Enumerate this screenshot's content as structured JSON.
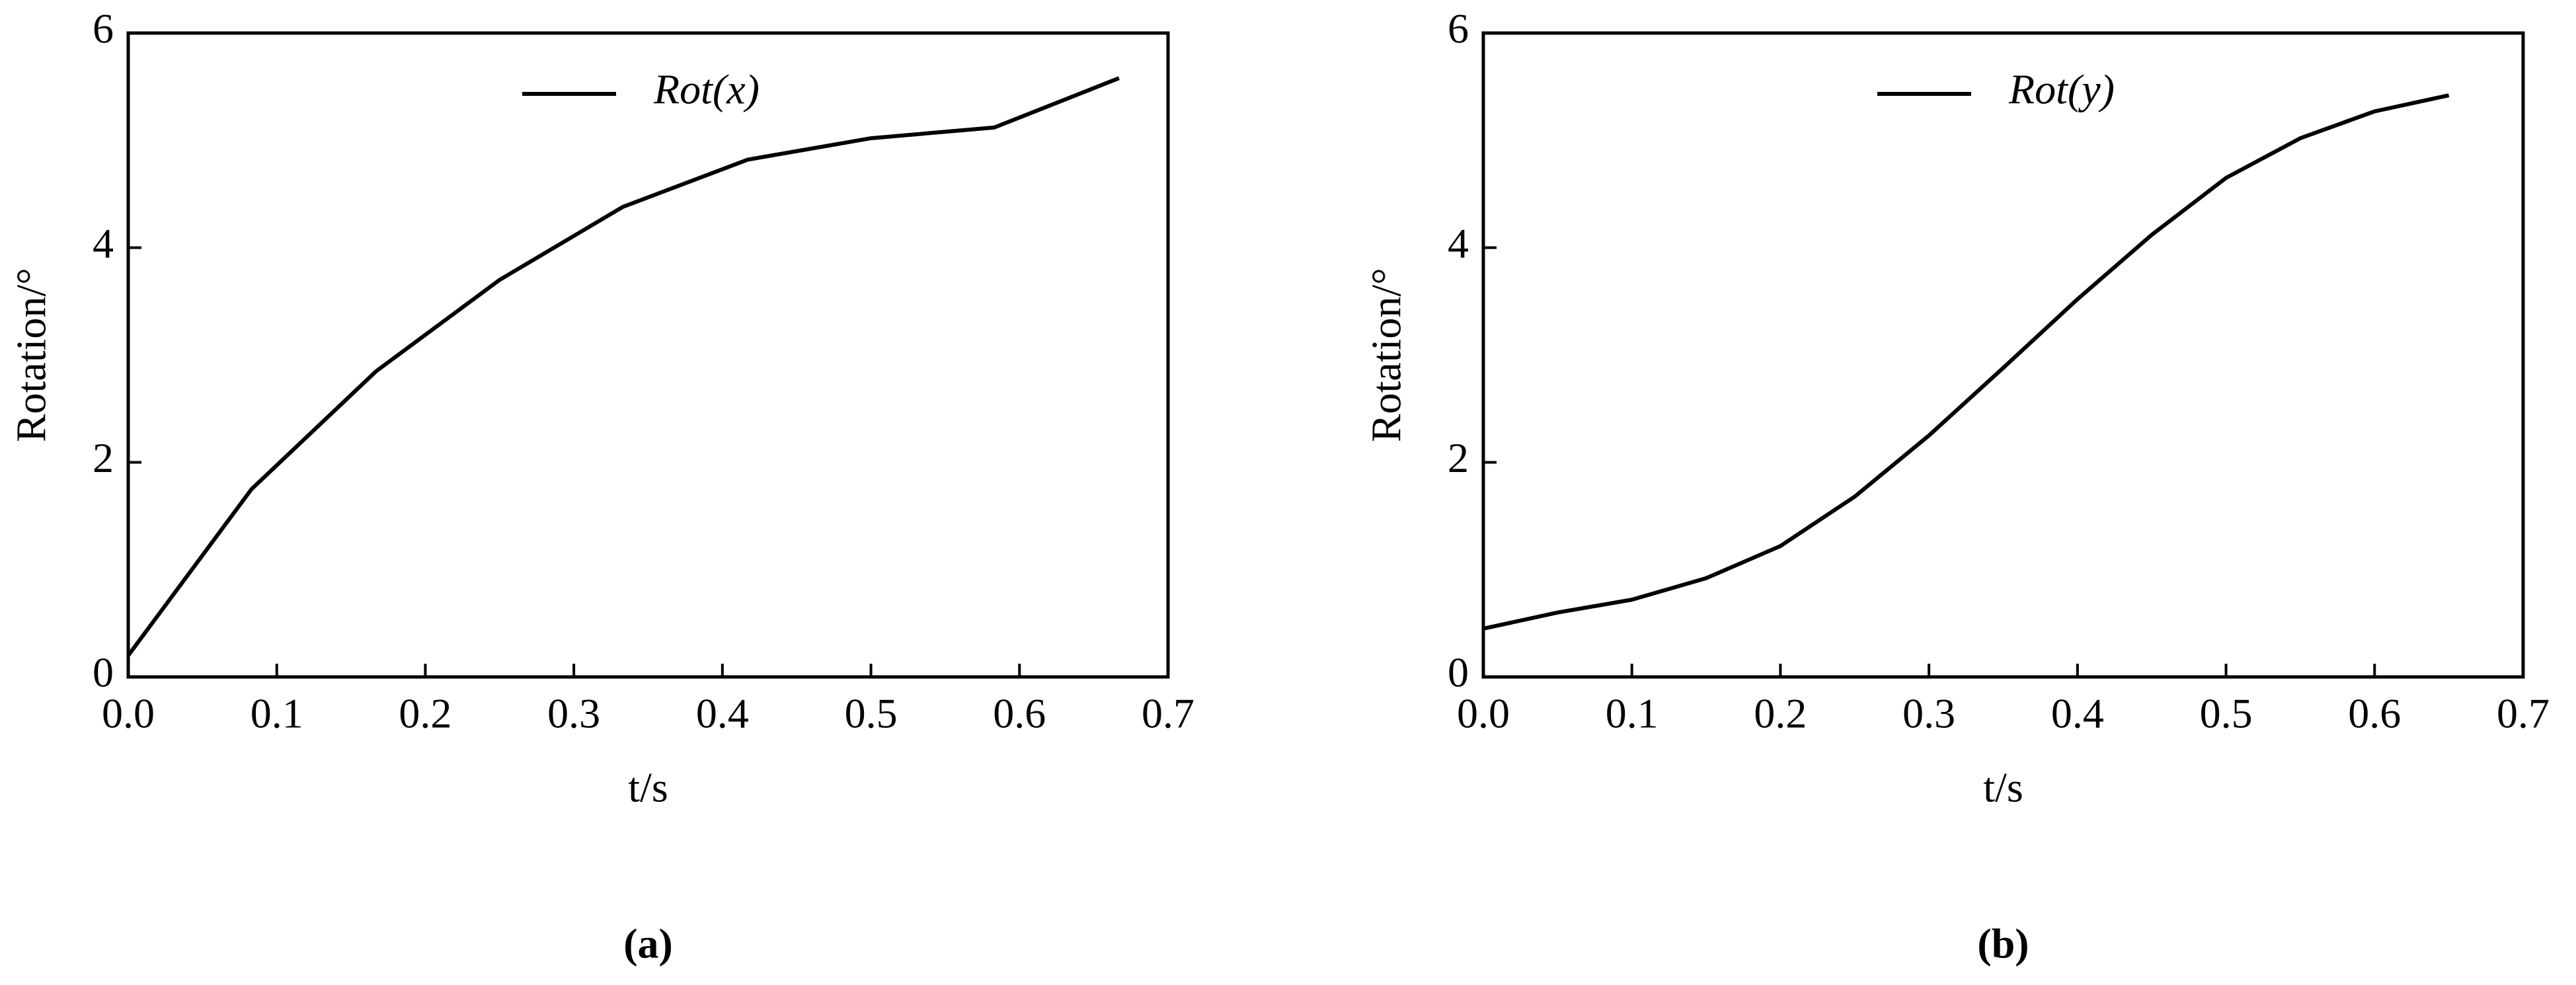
{
  "chart_data": [
    {
      "type": "line",
      "caption": "(a)",
      "xlabel": "t/s",
      "ylabel": "Rotation/°",
      "x": [
        0,
        0.083,
        0.167,
        0.25,
        0.333,
        0.417,
        0.5,
        0.583,
        0.667
      ],
      "series": [
        {
          "name": "Rot(x)",
          "color": "#000000",
          "values": [
            0.2,
            1.75,
            2.85,
            3.7,
            4.38,
            4.82,
            5.02,
            5.12,
            5.58
          ]
        }
      ],
      "xlim": [
        0,
        0.7
      ],
      "xticks": [
        {
          "value": 0,
          "label": "0.0"
        },
        0.1,
        0.2,
        0.3,
        0.4,
        0.5,
        0.6,
        0.7
      ],
      "ylim": [
        0,
        6
      ],
      "yticks": [
        0,
        2,
        4,
        6
      ],
      "grid": false,
      "legend": "upper center"
    },
    {
      "type": "line",
      "caption": "(b)",
      "xlabel": "t/s",
      "ylabel": "Rotation/°",
      "x": [
        0,
        0.05,
        0.1,
        0.15,
        0.2,
        0.25,
        0.3,
        0.35,
        0.4,
        0.45,
        0.5,
        0.55,
        0.6,
        0.65
      ],
      "series": [
        {
          "name": "Rot(y)",
          "color": "#000000",
          "values": [
            0.45,
            0.6,
            0.72,
            0.92,
            1.22,
            1.68,
            2.25,
            2.88,
            3.52,
            4.12,
            4.65,
            5.02,
            5.27,
            5.42
          ]
        }
      ],
      "xlim": [
        0,
        0.7
      ],
      "xticks": [
        {
          "value": 0,
          "label": "0.0"
        },
        0.1,
        0.2,
        0.3,
        0.4,
        0.5,
        0.6,
        0.7
      ],
      "ylim": [
        0,
        6
      ],
      "yticks": [
        0,
        2,
        4,
        6
      ],
      "grid": false,
      "legend": "upper center"
    }
  ]
}
